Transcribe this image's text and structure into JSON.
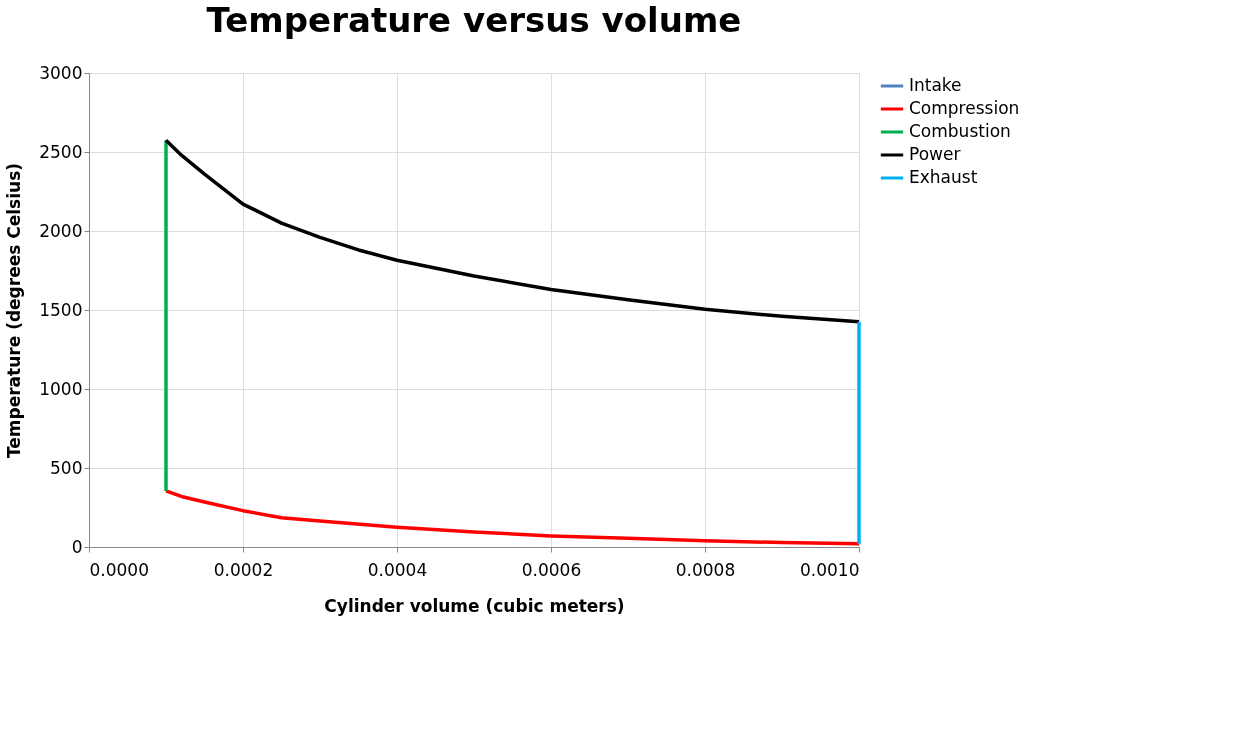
{
  "chart_data": {
    "type": "line",
    "title": "Temperature versus volume",
    "xlabel": "Cylinder volume (cubic meters)",
    "ylabel": "Temperature (degrees Celsius)",
    "xlim": [
      0,
      0.001
    ],
    "ylim": [
      0,
      3000
    ],
    "xticks": [
      {
        "value": 0,
        "label": "0.0000"
      },
      {
        "value": 0.0002,
        "label": "0.0002"
      },
      {
        "value": 0.0004,
        "label": "0.0004"
      },
      {
        "value": 0.0006,
        "label": "0.0006"
      },
      {
        "value": 0.0008,
        "label": "0.0008"
      },
      {
        "value": 0.001,
        "label": "0.0010"
      }
    ],
    "yticks": [
      0,
      500,
      1000,
      1500,
      2000,
      2500,
      3000
    ],
    "grid": true,
    "legend": "right",
    "marker": "none",
    "line_style": "solid",
    "series": [
      {
        "name": "Intake",
        "color": "#4f81bd"
      },
      {
        "name": "Compression",
        "color": "#ff0000",
        "x": [
          0.0001,
          0.00012,
          0.00015,
          0.0002,
          0.00025,
          0.0003,
          0.0004,
          0.0005,
          0.0006,
          0.0007,
          0.0008,
          0.0009,
          0.001
        ],
        "values": [
          355,
          320,
          285,
          230,
          185,
          165,
          125,
          95,
          70,
          55,
          40,
          28,
          20
        ]
      },
      {
        "name": "Combustion",
        "color": "#00b050",
        "x": [
          0.0001,
          0.0001
        ],
        "values": [
          355,
          2575
        ]
      },
      {
        "name": "Power",
        "color": "#000000",
        "x": [
          0.0001,
          0.00012,
          0.00015,
          0.0002,
          0.00025,
          0.0003,
          0.00035,
          0.0004,
          0.0005,
          0.0006,
          0.0007,
          0.0008,
          0.0009,
          0.001
        ],
        "values": [
          2575,
          2480,
          2360,
          2170,
          2050,
          1960,
          1880,
          1815,
          1715,
          1630,
          1565,
          1505,
          1460,
          1425
        ]
      },
      {
        "name": "Exhaust",
        "color": "#00b0f0",
        "x": [
          0.001,
          0.001
        ],
        "values": [
          1425,
          20
        ]
      }
    ]
  }
}
